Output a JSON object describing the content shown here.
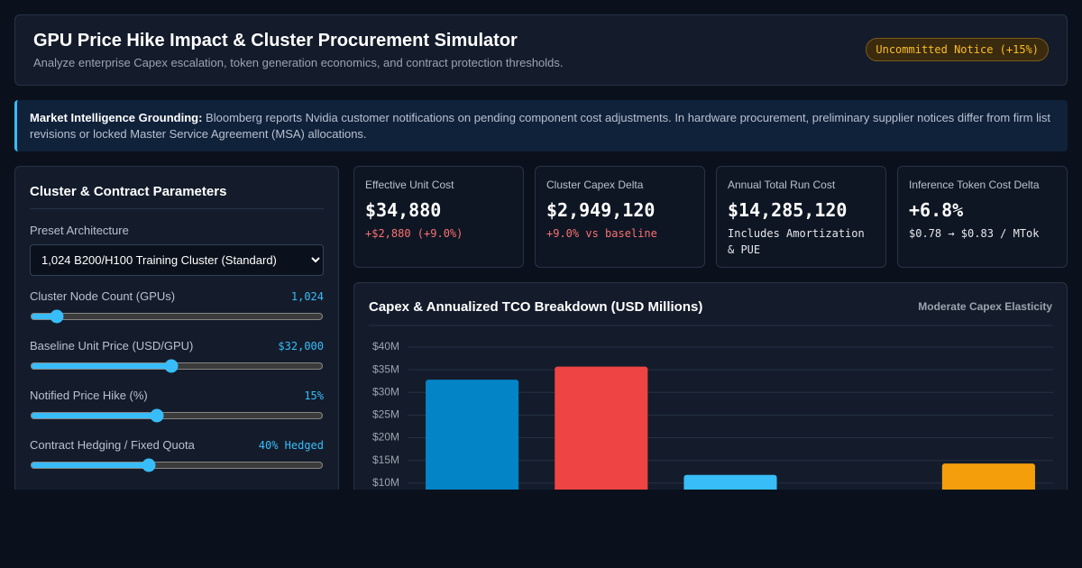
{
  "header": {
    "title": "GPU Price Hike Impact & Cluster Procurement Simulator",
    "subtitle": "Analyze enterprise Capex escalation, token generation economics, and contract protection thresholds.",
    "badge": "Uncommitted Notice (+15%)"
  },
  "notice": {
    "label": "Market Intelligence Grounding:",
    "text": "Bloomberg reports Nvidia customer notifications on pending component cost adjustments. In hardware procurement, preliminary supplier notices differ from firm list revisions or locked Master Service Agreement (MSA) allocations."
  },
  "parameters": {
    "title": "Cluster & Contract Parameters",
    "preset_label": "Preset Architecture",
    "preset_value": "1,024 B200/H100 Training Cluster (Standard)",
    "fields": [
      {
        "label": "Cluster Node Count (GPUs)",
        "value": "1,024"
      },
      {
        "label": "Baseline Unit Price (USD/GPU)",
        "value": "$32,000"
      },
      {
        "label": "Notified Price Hike (%)",
        "value": "15%"
      },
      {
        "label": "Contract Hedging / Fixed Quota",
        "value": "40% Hedged"
      }
    ]
  },
  "kpis": [
    {
      "label": "Effective Unit Cost",
      "value": "$34,880",
      "sub": "+$2,880 (+9.0%)"
    },
    {
      "label": "Cluster Capex Delta",
      "value": "$2,949,120",
      "sub": "+9.0% vs baseline"
    },
    {
      "label": "Annual Total Run Cost",
      "value": "$14,285,120",
      "sub": "Includes Amortization & PUE"
    },
    {
      "label": "Inference Token Cost Delta",
      "value": "+6.8%",
      "sub": "$0.78 → $0.83 / MTok"
    }
  ],
  "chart_data": {
    "type": "bar",
    "title": "Capex & Annualized TCO Breakdown (USD Millions)",
    "badge": "Moderate Capex Elasticity",
    "categories": [
      null,
      null,
      null,
      null,
      null
    ],
    "values": [
      32.8,
      35.7,
      11.8,
      null,
      14.3
    ],
    "colors": [
      "#0284c7",
      "#ef4444",
      "#38bdf8",
      "#8b5cf6",
      "#f59e0b"
    ],
    "ylim": [
      0,
      40
    ],
    "yticks": [
      {
        "value": 10,
        "label": "$10M"
      },
      {
        "value": 15,
        "label": "$15M"
      },
      {
        "value": 20,
        "label": "$20M"
      },
      {
        "value": 25,
        "label": "$25M"
      },
      {
        "value": 30,
        "label": "$30M"
      },
      {
        "value": 35,
        "label": "$35M"
      },
      {
        "value": 40,
        "label": "$40M"
      }
    ],
    "grid": true
  }
}
